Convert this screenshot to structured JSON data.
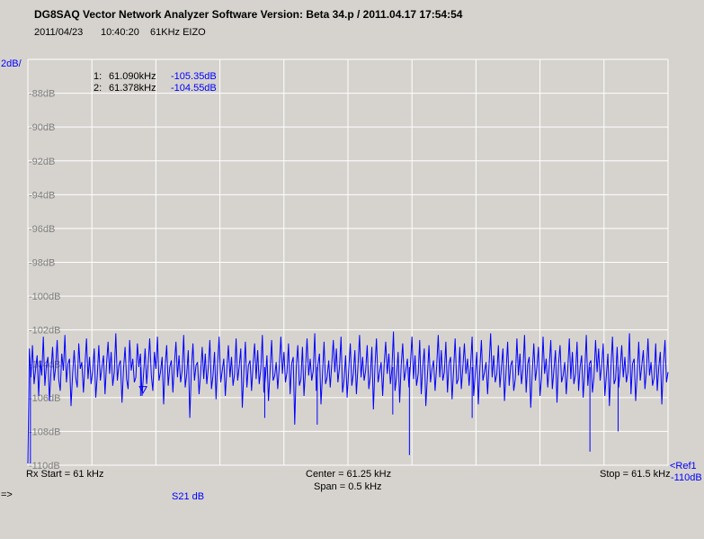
{
  "header": {
    "title": "DG8SAQ Vector Network Analyzer Software    Version:  Beta 34.p / 2011.04.17 17:54:54",
    "date": "2011/04/23",
    "time": "10:40:20",
    "note": "61KHz EIZO"
  },
  "markers": [
    {
      "index": "1:",
      "freq": "61.090kHz",
      "value": "-105.35dB"
    },
    {
      "index": "2:",
      "freq": "61.378kHz",
      "value": "-104.55dB"
    }
  ],
  "footer": {
    "start": "Rx Start = 61 kHz",
    "center": "Center = 61.25 kHz",
    "span": "Span = 0.5 kHz",
    "stop": "Stop = 61.5 kHz",
    "ref_line1": "<Ref1",
    "ref_line2": "-110dB",
    "prompt": "=>",
    "trace": "S21  dB"
  },
  "colors": {
    "trace": "#0000ff",
    "grid": "#ffffff",
    "background": "#d6d3ce",
    "labels": "#808080"
  },
  "chart_data": {
    "type": "line",
    "scale_label": "2dB/",
    "xlim": [
      61.0,
      61.5
    ],
    "ylim": [
      -110,
      -86
    ],
    "x_divisions": 10,
    "y_ticks": [
      "-88dB",
      "-90dB",
      "-92dB",
      "-94dB",
      "-96dB",
      "-98dB",
      "-100dB",
      "-102dB",
      "-104dB",
      "-106dB",
      "-108dB",
      "-110dB"
    ],
    "y_tick_values": [
      -88,
      -90,
      -92,
      -94,
      -96,
      -98,
      -100,
      -102,
      -104,
      -106,
      -108,
      -110
    ],
    "grid": true,
    "series": [
      {
        "values": [
          -109.9,
          -103.1,
          -104.8,
          -102.9,
          -105.2,
          -104.3,
          -103.5,
          -105.9,
          -103.8,
          -104.7,
          -102.4,
          -105.3,
          -104.1,
          -103.6,
          -106.2,
          -104.5,
          -103.0,
          -105.0,
          -104.2,
          -102.6,
          -104.9,
          -105.6,
          -103.4,
          -104.4,
          -102.3,
          -105.1,
          -104.0,
          -103.7,
          -106.5,
          -104.6,
          -103.2,
          -104.8,
          -105.4,
          -102.8,
          -104.3,
          -103.9,
          -105.7,
          -104.1,
          -102.5,
          -104.9,
          -103.6,
          -105.2,
          -104.4,
          -103.1,
          -106.0,
          -104.7,
          -102.9,
          -105.0,
          -104.2,
          -103.5,
          -105.8,
          -104.0,
          -102.7,
          -104.6,
          -103.3,
          -105.3,
          -104.5,
          -102.2,
          -105.0,
          -104.1,
          -103.8,
          -106.3,
          -104.3,
          -103.0,
          -104.9,
          -105.5,
          -102.6,
          -104.4,
          -103.7,
          -105.1,
          -104.8,
          -102.8,
          -104.2,
          -103.4,
          -105.9,
          -104.6,
          -103.1,
          -105.2,
          -104.0,
          -102.5,
          -104.7,
          -105.6,
          -103.3,
          -104.3,
          -102.4,
          -105.0,
          -104.5,
          -103.6,
          -106.4,
          -104.1,
          -102.9,
          -105.3,
          -104.2,
          -103.8,
          -105.7,
          -104.0,
          -102.7,
          -104.8,
          -103.5,
          -105.1,
          -104.4,
          -102.3,
          -105.4,
          -104.6,
          -103.2,
          -107.2,
          -104.3,
          -102.8,
          -105.0,
          -104.1,
          -103.9,
          -105.8,
          -104.5,
          -103.0,
          -104.9,
          -103.4,
          -105.2,
          -104.2,
          -102.6,
          -105.5,
          -104.7,
          -103.3,
          -106.1,
          -104.0,
          -102.4,
          -105.1,
          -104.4,
          -103.7,
          -105.9,
          -104.3,
          -102.9,
          -104.8,
          -103.6,
          -105.3,
          -104.6,
          -102.5,
          -105.0,
          -104.2,
          -103.1,
          -106.6,
          -104.5,
          -102.7,
          -105.4,
          -104.1,
          -103.8,
          -105.6,
          -104.0,
          -102.8,
          -104.9,
          -103.2,
          -105.2,
          -104.3,
          -102.3,
          -105.7,
          -104.8,
          -103.5,
          -106.2,
          -104.4,
          -102.6,
          -105.0,
          -104.7,
          -103.9,
          -105.5,
          -104.1,
          -102.4,
          -104.6,
          -103.3,
          -105.1,
          -104.5,
          -102.8,
          -105.8,
          -104.0,
          -103.6,
          -107.6,
          -104.2,
          -102.9,
          -105.3,
          -104.9,
          -103.0,
          -105.9,
          -104.3,
          -102.5,
          -104.7,
          -103.7,
          -105.0,
          -104.4,
          -102.2,
          -105.6,
          -104.1,
          -103.4,
          -106.4,
          -104.6,
          -102.7,
          -105.2,
          -104.8,
          -103.8,
          -105.4,
          -104.0,
          -102.6,
          -104.5,
          -103.1,
          -105.1,
          -104.2,
          -102.4,
          -105.7,
          -104.9,
          -103.5,
          -106.0,
          -104.3,
          -102.8,
          -105.3,
          -104.6,
          -103.2,
          -105.8,
          -104.1,
          -102.3,
          -104.8,
          -103.6,
          -105.0,
          -104.4,
          -102.9,
          -105.5,
          -104.7,
          -103.0,
          -106.7,
          -104.2,
          -102.5,
          -105.1,
          -104.5,
          -103.9,
          -105.9,
          -104.0,
          -102.7,
          -104.6,
          -103.4,
          -105.2,
          -104.3,
          -102.1,
          -105.6,
          -104.8,
          -103.3,
          -106.3,
          -104.1,
          -102.8,
          -105.0,
          -104.4,
          -103.7,
          -105.4,
          -104.0,
          -102.4,
          -104.9,
          -103.5,
          -105.3,
          -104.6,
          -102.6,
          -105.8,
          -104.2,
          -103.1,
          -106.5,
          -104.7,
          -102.9,
          -105.1,
          -104.3,
          -103.8,
          -105.6,
          -104.1,
          -102.3,
          -104.8,
          -103.2,
          -105.0,
          -104.5,
          -102.7,
          -105.7,
          -104.0,
          -103.6,
          -106.1,
          -104.4,
          -102.5,
          -105.2,
          -104.9,
          -103.0,
          -105.5,
          -104.2,
          -102.8,
          -104.6,
          -103.7,
          -105.3,
          -104.1,
          -102.4,
          -105.9,
          -104.7,
          -103.3,
          -106.4,
          -104.3,
          -102.6,
          -105.0,
          -104.5,
          -103.9,
          -105.8,
          -104.0,
          -102.2,
          -104.8,
          -103.5,
          -105.1,
          -104.6,
          -102.9,
          -105.4,
          -104.2,
          -103.1,
          -106.2,
          -104.4,
          -102.7,
          -105.3,
          -104.1,
          -103.8,
          -105.6,
          -104.9,
          -102.5,
          -104.7,
          -103.4,
          -105.2,
          -104.3,
          -102.3,
          -105.7,
          -104.0,
          -103.6,
          -106.6,
          -104.5,
          -102.8,
          -105.0,
          -104.2,
          -103.0,
          -105.9,
          -104.8,
          -102.4,
          -104.6,
          -103.7,
          -105.4,
          -104.1,
          -102.6,
          -105.5,
          -104.4,
          -103.2,
          -106.3,
          -104.0,
          -102.9,
          -105.1,
          -104.7,
          -103.9,
          -105.8,
          -104.3,
          -102.5,
          -104.9,
          -103.3,
          -105.2,
          -104.6,
          -102.7,
          -105.6,
          -104.2,
          -103.5,
          -106.0,
          -104.4,
          -102.3,
          -105.3,
          -104.0,
          -103.8,
          -105.7,
          -104.8,
          -102.6,
          -104.5,
          -103.1,
          -105.0,
          -104.1,
          -102.8,
          -105.9,
          -104.7,
          -103.4,
          -106.5,
          -104.2,
          -102.4,
          -105.2,
          -104.9,
          -103.0,
          -105.4,
          -104.3,
          -102.9,
          -104.8,
          -103.6,
          -105.1,
          -104.5,
          -102.2,
          -105.8,
          -104.0,
          -103.7,
          -106.2,
          -104.6,
          -102.7,
          -105.0,
          -104.1,
          -103.2,
          -105.5,
          -104.4,
          -102.5,
          -104.7,
          -103.9,
          -105.3,
          -104.8,
          -102.8,
          -105.6,
          -104.2,
          -103.3,
          -106.4,
          -104.0,
          -102.6,
          -105.1,
          -104.5
        ]
      }
    ],
    "spikes": [
      {
        "x": 61.002,
        "y": -109.9
      },
      {
        "x": 61.088,
        "y": -105.9
      },
      {
        "x": 61.185,
        "y": -107.2
      },
      {
        "x": 61.226,
        "y": -107.6
      },
      {
        "x": 61.285,
        "y": -107.0
      },
      {
        "x": 61.298,
        "y": -109.4
      },
      {
        "x": 61.347,
        "y": -107.2
      },
      {
        "x": 61.439,
        "y": -109.2
      },
      {
        "x": 61.461,
        "y": -108.0
      }
    ]
  }
}
